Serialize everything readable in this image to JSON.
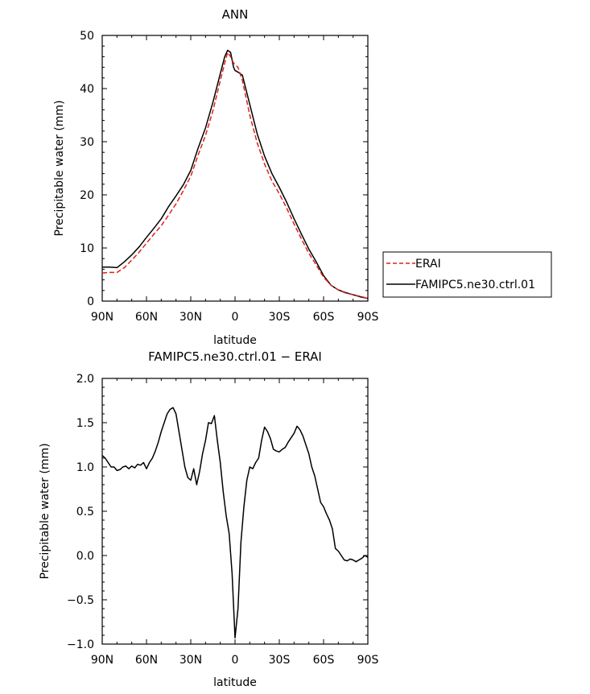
{
  "chart_data": [
    {
      "type": "line",
      "title": "ANN",
      "xlabel": "latitude",
      "ylabel": "Precipitable water (mm)",
      "xlim": [
        90,
        -90
      ],
      "ylim": [
        0,
        50
      ],
      "xticks": [
        90,
        60,
        30,
        0,
        -30,
        -60,
        -90
      ],
      "xtick_labels": [
        "90N",
        "60N",
        "30N",
        "0",
        "30S",
        "60S",
        "90S"
      ],
      "yticks": [
        0,
        10,
        20,
        30,
        40,
        50
      ],
      "ytick_labels": [
        "0",
        "10",
        "20",
        "30",
        "40",
        "50"
      ],
      "grid": false,
      "legend_position": "right",
      "series": [
        {
          "name": "ERAI",
          "color": "#e0201b",
          "dash": "dashed",
          "x": [
            90,
            85,
            80,
            75,
            70,
            65,
            60,
            55,
            50,
            45,
            40,
            35,
            30,
            25,
            20,
            15,
            10,
            7,
            5,
            3,
            1,
            0,
            -2,
            -5,
            -10,
            -15,
            -20,
            -25,
            -30,
            -35,
            -40,
            -45,
            -50,
            -55,
            -60,
            -65,
            -70,
            -75,
            -80,
            -85,
            -90
          ],
          "y": [
            5.3,
            5.4,
            5.4,
            6.3,
            7.7,
            9.2,
            10.9,
            12.6,
            14.2,
            16.2,
            18.3,
            20.8,
            23.5,
            27.5,
            31.2,
            35.8,
            41.5,
            44.8,
            46.8,
            46.0,
            44.8,
            44.5,
            44.0,
            41.5,
            35.0,
            29.8,
            25.8,
            22.6,
            20.2,
            17.5,
            14.5,
            11.7,
            9.0,
            6.8,
            4.5,
            3.0,
            2.1,
            1.5,
            1.2,
            0.9,
            0.5
          ]
        },
        {
          "name": "FAMIPC5.ne30.ctrl.01",
          "color": "#000000",
          "dash": "solid",
          "x": [
            90,
            85,
            80,
            75,
            70,
            65,
            60,
            55,
            50,
            45,
            40,
            35,
            30,
            25,
            20,
            15,
            10,
            7,
            5,
            3,
            1,
            0,
            -2,
            -5,
            -10,
            -15,
            -20,
            -25,
            -30,
            -35,
            -40,
            -45,
            -50,
            -55,
            -60,
            -65,
            -70,
            -75,
            -80,
            -85,
            -90
          ],
          "y": [
            6.4,
            6.4,
            6.3,
            7.4,
            8.7,
            10.2,
            12.0,
            13.7,
            15.5,
            17.8,
            19.8,
            21.9,
            24.6,
            28.8,
            32.6,
            37.4,
            42.8,
            46.0,
            47.2,
            46.8,
            44.0,
            43.4,
            43.1,
            42.5,
            37.0,
            31.5,
            27.3,
            24.0,
            21.4,
            18.6,
            15.5,
            12.6,
            9.8,
            7.4,
            4.8,
            3.0,
            2.1,
            1.6,
            1.2,
            0.8,
            0.5
          ]
        }
      ]
    },
    {
      "type": "line",
      "title": "FAMIPC5.ne30.ctrl.01 − ERAI",
      "xlabel": "latitude",
      "ylabel": "Precipitable water (mm)",
      "xlim": [
        90,
        -90
      ],
      "ylim": [
        -1.0,
        2.0
      ],
      "xticks": [
        90,
        60,
        30,
        0,
        -30,
        -60,
        -90
      ],
      "xtick_labels": [
        "90N",
        "60N",
        "30N",
        "0",
        "30S",
        "60S",
        "90S"
      ],
      "yticks": [
        -1.0,
        -0.5,
        0.0,
        0.5,
        1.0,
        1.5,
        2.0
      ],
      "ytick_labels": [
        "−1.0",
        "−0.5",
        "0.0",
        "0.5",
        "1.0",
        "1.5",
        "2.0"
      ],
      "grid": false,
      "series": [
        {
          "color": "#000000",
          "dash": "solid",
          "x": [
            90,
            88,
            86,
            84,
            82,
            80,
            78,
            76,
            74,
            72,
            70,
            68,
            66,
            64,
            62,
            60,
            58,
            56,
            54,
            52,
            50,
            48,
            46,
            44,
            42,
            40,
            38,
            36,
            34,
            32,
            30,
            28,
            26,
            24,
            22,
            20,
            18,
            16,
            14,
            12,
            10,
            8,
            6,
            4,
            2,
            0,
            -2,
            -4,
            -6,
            -8,
            -10,
            -12,
            -14,
            -16,
            -18,
            -20,
            -22,
            -24,
            -26,
            -28,
            -30,
            -32,
            -34,
            -36,
            -38,
            -40,
            -42,
            -44,
            -46,
            -48,
            -50,
            -52,
            -54,
            -56,
            -58,
            -60,
            -62,
            -64,
            -66,
            -68,
            -70,
            -72,
            -74,
            -76,
            -78,
            -80,
            -82,
            -84,
            -86,
            -88,
            -90
          ],
          "y": [
            1.13,
            1.1,
            1.05,
            1.0,
            1.0,
            0.96,
            0.97,
            1.0,
            1.01,
            0.98,
            1.01,
            0.99,
            1.03,
            1.02,
            1.05,
            0.98,
            1.05,
            1.1,
            1.18,
            1.28,
            1.4,
            1.5,
            1.6,
            1.65,
            1.67,
            1.6,
            1.4,
            1.2,
            1.0,
            0.88,
            0.85,
            0.98,
            0.8,
            0.95,
            1.15,
            1.3,
            1.5,
            1.49,
            1.58,
            1.3,
            1.05,
            0.72,
            0.45,
            0.25,
            -0.2,
            -0.93,
            -0.6,
            0.15,
            0.55,
            0.85,
            1.0,
            0.98,
            1.05,
            1.1,
            1.3,
            1.45,
            1.4,
            1.32,
            1.2,
            1.18,
            1.17,
            1.2,
            1.22,
            1.28,
            1.33,
            1.38,
            1.46,
            1.42,
            1.35,
            1.25,
            1.15,
            1.0,
            0.9,
            0.75,
            0.6,
            0.55,
            0.47,
            0.4,
            0.3,
            0.08,
            0.05,
            0.0,
            -0.05,
            -0.06,
            -0.04,
            -0.05,
            -0.07,
            -0.05,
            -0.03,
            0.0,
            -0.02
          ]
        }
      ]
    }
  ]
}
